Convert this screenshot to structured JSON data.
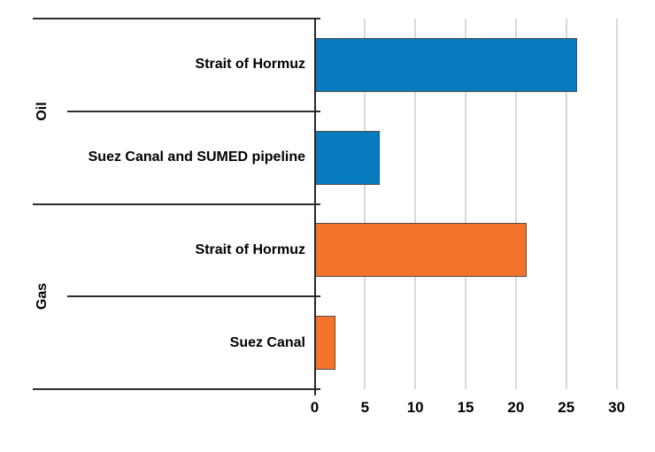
{
  "chart_data": {
    "type": "bar",
    "orientation": "horizontal",
    "title": "",
    "xlabel": "",
    "ylabel": "",
    "xlim": [
      0,
      30
    ],
    "xticks": [
      0,
      5,
      10,
      15,
      20,
      25,
      30
    ],
    "grid": "vertical",
    "legend": "none",
    "groups": [
      {
        "name": "Oil",
        "color": "#087ABE",
        "bars": [
          {
            "label": "Strait of Hormuz",
            "value": 26
          },
          {
            "label": "Suez Canal and SUMED pipeline",
            "value": 6.4
          }
        ]
      },
      {
        "name": "Gas",
        "color": "#F4732A",
        "bars": [
          {
            "label": "Strait of Hormuz",
            "value": 21
          },
          {
            "label": "Suez Canal",
            "value": 2
          }
        ]
      }
    ],
    "colors": {
      "oil_bar": "#087ABE",
      "gas_bar": "#F4732A",
      "bar_border": "#4D4D4D",
      "gridline": "#D9D9D9",
      "axis": "#262626",
      "text": "#000000",
      "background": "#FFFFFF"
    }
  }
}
